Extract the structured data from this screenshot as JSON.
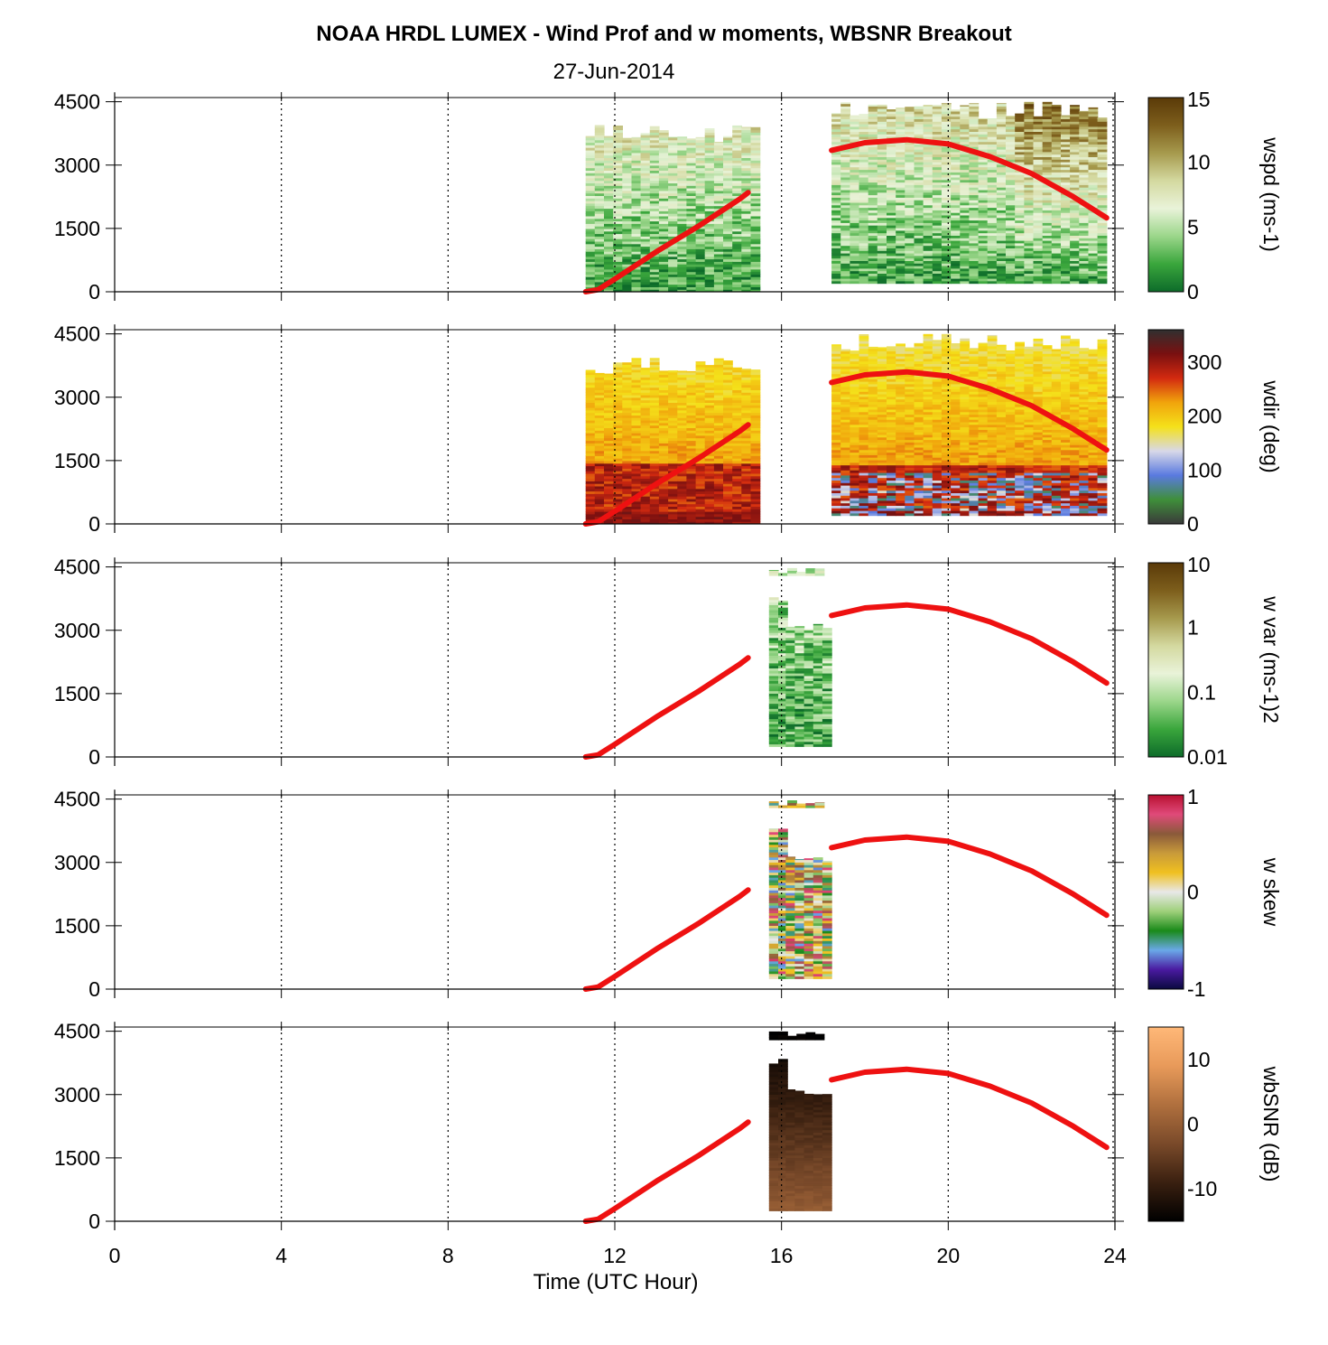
{
  "title": "NOAA HRDL LUMEX - Wind Prof and w moments, WBSNR Breakout",
  "subtitle": "27-Jun-2014",
  "chart_data": {
    "type": "heatmap",
    "xlabel": "Time (UTC Hour)",
    "xlim": [
      0,
      24
    ],
    "xticks": [
      "0",
      "4",
      "8",
      "12",
      "16",
      "20",
      "24"
    ],
    "ylim": [
      0,
      4600
    ],
    "yticks": [
      "0",
      "1500",
      "3000",
      "4500"
    ],
    "vertical_grid": "dotted at every 4 h",
    "boundary_layer_height_line": {
      "color": "#ee1111",
      "segment1": {
        "x": [
          11.3,
          11.6,
          12.0,
          13.0,
          14.0,
          15.0,
          15.2
        ],
        "y": [
          0,
          50,
          300,
          950,
          1550,
          2200,
          2350
        ]
      },
      "segment2": {
        "x": [
          17.2,
          18.0,
          19.0,
          20.0,
          21.0,
          22.0,
          23.0,
          23.8
        ],
        "y": [
          3350,
          3530,
          3600,
          3500,
          3200,
          2800,
          2250,
          1750
        ]
      }
    },
    "panels": [
      {
        "name": "wspd",
        "colorbar_label": "wspd (ms-1)",
        "colorbar_ticks": [
          "0",
          "5",
          "10",
          "15"
        ],
        "colorbar_colors": [
          "#0d6b2a",
          "#3aa63c",
          "#9bd68a",
          "#e9f3d9",
          "#d4d9a0",
          "#a69a4d",
          "#7d5e1c",
          "#5a3a08"
        ],
        "data_blocks": [
          {
            "x": [
              11.3,
              15.4
            ],
            "y": [
              0,
              3950
            ]
          },
          {
            "x": [
              17.2,
              23.8
            ],
            "y": [
              200,
              4500
            ]
          }
        ]
      },
      {
        "name": "wdir",
        "colorbar_label": "wdir (deg)",
        "colorbar_ticks": [
          "0",
          "100",
          "200",
          "300"
        ],
        "colorbar_colors": [
          "#3a3a3a",
          "#3f8f3a",
          "#5a7ae0",
          "#d8d8e8",
          "#f4e11a",
          "#f1a40c",
          "#d32a10",
          "#7a1010",
          "#303030"
        ],
        "data_blocks": [
          {
            "x": [
              11.3,
              15.4
            ],
            "y": [
              0,
              3950
            ]
          },
          {
            "x": [
              17.2,
              23.8
            ],
            "y": [
              200,
              4500
            ]
          }
        ]
      },
      {
        "name": "w var",
        "colorbar_label": "w var (ms-1)2",
        "colorbar_ticks": [
          "0.01",
          "0.1",
          "1",
          "10"
        ],
        "colorbar_colors": [
          "#0d6b2a",
          "#3aa63c",
          "#9bd68a",
          "#e9f3d9",
          "#d4d9a0",
          "#a69a4d",
          "#7d5e1c",
          "#5a3a08"
        ],
        "data_blocks": [
          {
            "x": [
              15.7,
              16.0
            ],
            "y": [
              250,
              3850
            ]
          },
          {
            "x": [
              16.1,
              17.0
            ],
            "y": [
              250,
              3150
            ]
          },
          {
            "x": [
              15.7,
              16.9
            ],
            "y": [
              4300,
              4500
            ]
          }
        ]
      },
      {
        "name": "w skew",
        "colorbar_label": "w skew",
        "colorbar_ticks": [
          "-1",
          "0",
          "1"
        ],
        "colorbar_colors": [
          "#0a0a40",
          "#4a1aa0",
          "#6aa8e8",
          "#1a8a1a",
          "#9ed07a",
          "#e8e8e8",
          "#f0c020",
          "#c89a3a",
          "#8a5a3a",
          "#e04a7a",
          "#b81030"
        ],
        "data_blocks": [
          {
            "x": [
              15.7,
              16.0
            ],
            "y": [
              250,
              3850
            ]
          },
          {
            "x": [
              16.1,
              17.0
            ],
            "y": [
              250,
              3150
            ]
          },
          {
            "x": [
              15.7,
              16.9
            ],
            "y": [
              4300,
              4500
            ]
          }
        ]
      },
      {
        "name": "wbSNR",
        "colorbar_label": "wbSNR (dB)",
        "colorbar_ticks": [
          "-10",
          "0",
          "10"
        ],
        "colorbar_colors": [
          "#000000",
          "#3a2010",
          "#7a4a2a",
          "#b0703e",
          "#e89a5a",
          "#ffb878"
        ],
        "data_blocks": [
          {
            "x": [
              15.7,
              16.0
            ],
            "y": [
              250,
              3850
            ]
          },
          {
            "x": [
              16.1,
              17.0
            ],
            "y": [
              250,
              3150
            ]
          },
          {
            "x": [
              15.7,
              16.9
            ],
            "y": [
              4300,
              4500
            ]
          }
        ]
      }
    ]
  }
}
